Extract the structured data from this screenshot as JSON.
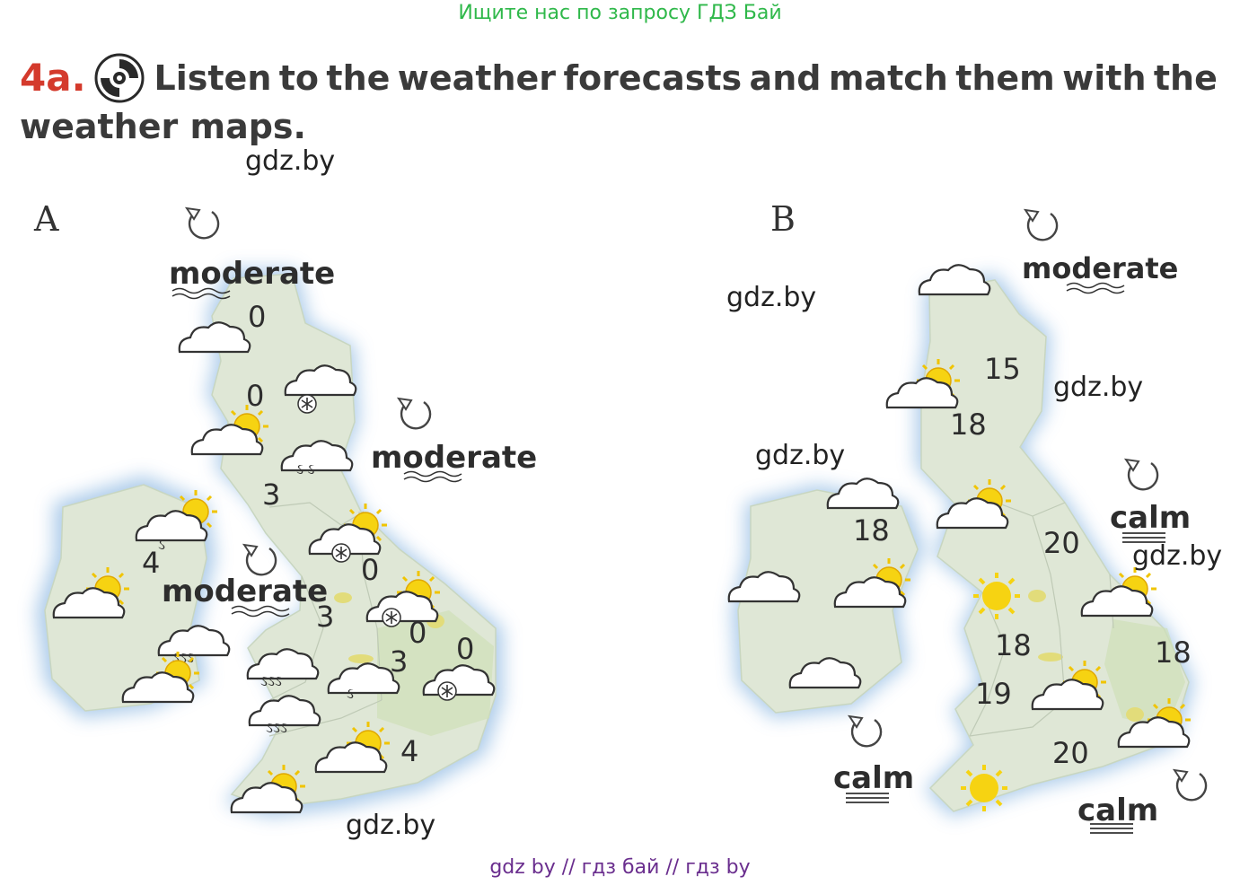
{
  "header": {
    "top_banner": "Ищите нас по запросу ГДЗ Бай",
    "task_number": "4a.",
    "task_words_line1": [
      "Listen",
      "to",
      "the",
      "weather",
      "forecasts",
      "and",
      "match",
      "them",
      "with",
      "the"
    ],
    "task_line2": "weather maps."
  },
  "watermarks": [
    "gdz.by",
    "gdz.by",
    "gdz.by",
    "gdz.by",
    "gdz.by",
    "gdz.by"
  ],
  "map_a": {
    "letter": "A",
    "wind_labels": [
      "moderate",
      "moderate",
      "moderate"
    ],
    "temperatures": [
      "0",
      "0",
      "3",
      "4",
      "0",
      "3",
      "0",
      "3",
      "0",
      "4"
    ]
  },
  "map_b": {
    "letter": "B",
    "wind_labels": [
      "moderate",
      "calm",
      "calm",
      "calm"
    ],
    "temperatures": [
      "15",
      "18",
      "18",
      "20",
      "18",
      "19",
      "18",
      "20"
    ]
  },
  "footer": {
    "bottom_banner": "gdz by  //  гдз бай  //  гдз by"
  },
  "colors": {
    "land": "#dde6d4",
    "sea_glow": "#a8c8e8",
    "accent_red": "#d43a2c",
    "banner_green": "#2fb84a",
    "banner_purple": "#6a2e8e"
  }
}
